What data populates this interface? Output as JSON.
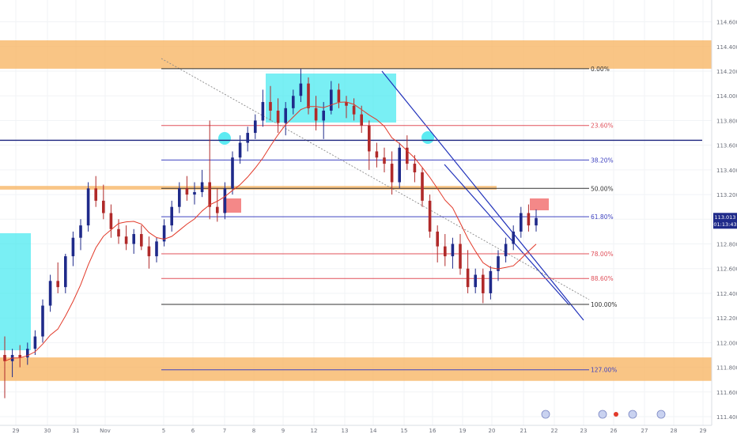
{
  "chart_data": {
    "type": "candlestick",
    "title": "",
    "xlabel": "",
    "ylabel": "",
    "grid": true,
    "ylim": [
      111.4,
      114.7
    ],
    "y_ticks": [
      "114.600",
      "114.400",
      "114.200",
      "114.000",
      "113.800",
      "113.600",
      "113.400",
      "113.200",
      "113.000",
      "112.800",
      "112.600",
      "112.400",
      "112.200",
      "112.000",
      "111.800",
      "111.600",
      "111.400"
    ],
    "x_ticks": [
      "29",
      "30",
      "31",
      "Nov",
      "5",
      "6",
      "7",
      "8",
      "9",
      "12",
      "13",
      "14",
      "15",
      "16",
      "19",
      "20",
      "21",
      "22",
      "23",
      "26",
      "27",
      "28",
      "29"
    ],
    "fibonacci_levels": [
      {
        "label": "0.00%",
        "price": 114.22,
        "color": "#333333"
      },
      {
        "label": "23.60%",
        "price": 113.76,
        "color": "#e0505a"
      },
      {
        "label": "38.20%",
        "price": 113.48,
        "color": "#3f43c0"
      },
      {
        "label": "50.00%",
        "price": 113.25,
        "color": "#333333"
      },
      {
        "label": "61.80%",
        "price": 113.02,
        "color": "#3f43c0"
      },
      {
        "label": "78.00%",
        "price": 112.72,
        "color": "#e0505a"
      },
      {
        "label": "88.60%",
        "price": 112.52,
        "color": "#e0505a"
      },
      {
        "label": "100.00%",
        "price": 112.31,
        "color": "#333333"
      },
      {
        "label": "127.00%",
        "price": 111.78,
        "color": "#3f43c0"
      }
    ],
    "zones": [
      {
        "kind": "resistance",
        "from": 114.22,
        "to": 114.45
      },
      {
        "kind": "support",
        "from": 111.69,
        "to": 111.88
      },
      {
        "kind": "level",
        "from": 113.24,
        "to": 113.27
      }
    ],
    "horizontal_lines": [
      {
        "price": 113.64,
        "color": "#1a237e"
      }
    ],
    "price_label": {
      "value": "113.013",
      "timer": "01:13:43"
    },
    "series": [
      {
        "x_start": 0,
        "candles": [
          [
            111.9,
            112.05,
            111.55,
            111.85
          ],
          [
            111.85,
            111.95,
            111.72,
            111.9
          ],
          [
            111.9,
            111.98,
            111.8,
            111.88
          ],
          [
            111.88,
            112.0,
            111.82,
            111.95
          ],
          [
            111.95,
            112.1,
            111.9,
            112.05
          ],
          [
            112.05,
            112.35,
            112.0,
            112.3
          ],
          [
            112.3,
            112.55,
            112.25,
            112.5
          ],
          [
            112.5,
            112.65,
            112.4,
            112.45
          ],
          [
            112.45,
            112.72,
            112.4,
            112.7
          ],
          [
            112.7,
            112.9,
            112.62,
            112.85
          ],
          [
            112.85,
            113.0,
            112.75,
            112.95
          ],
          [
            112.95,
            113.3,
            112.9,
            113.25
          ],
          [
            113.25,
            113.35,
            113.1,
            113.15
          ],
          [
            113.15,
            113.28,
            113.0,
            113.05
          ],
          [
            113.05,
            113.12,
            112.85,
            112.92
          ],
          [
            112.92,
            113.0,
            112.8,
            112.86
          ],
          [
            112.86,
            112.95,
            112.75,
            112.8
          ],
          [
            112.8,
            112.92,
            112.72,
            112.88
          ],
          [
            112.88,
            112.95,
            112.75,
            112.78
          ],
          [
            112.78,
            112.86,
            112.6,
            112.7
          ],
          [
            112.7,
            112.85,
            112.65,
            112.82
          ],
          [
            112.82,
            113.0,
            112.78,
            112.95
          ],
          [
            112.95,
            113.15,
            112.9,
            113.1
          ],
          [
            113.1,
            113.3,
            113.05,
            113.25
          ],
          [
            113.25,
            113.35,
            113.15,
            113.2
          ],
          [
            113.2,
            113.3,
            113.12,
            113.22
          ],
          [
            113.22,
            113.4,
            113.18,
            113.3
          ],
          [
            113.3,
            113.8,
            113.0,
            113.1
          ],
          [
            113.1,
            113.25,
            112.98,
            113.05
          ],
          [
            113.05,
            113.3,
            113.0,
            113.25
          ],
          [
            113.25,
            113.55,
            113.2,
            113.5
          ],
          [
            113.5,
            113.68,
            113.45,
            113.62
          ],
          [
            113.62,
            113.75,
            113.55,
            113.7
          ],
          [
            113.7,
            113.85,
            113.65,
            113.8
          ],
          [
            113.8,
            114.05,
            113.75,
            113.95
          ],
          [
            113.95,
            114.08,
            113.8,
            113.88
          ],
          [
            113.88,
            113.98,
            113.7,
            113.78
          ],
          [
            113.78,
            113.95,
            113.68,
            113.9
          ],
          [
            113.9,
            114.05,
            113.85,
            114.0
          ],
          [
            114.0,
            114.22,
            113.95,
            114.1
          ],
          [
            114.1,
            114.15,
            113.85,
            113.9
          ],
          [
            113.9,
            114.0,
            113.72,
            113.8
          ],
          [
            113.8,
            113.95,
            113.65,
            113.88
          ],
          [
            113.88,
            114.12,
            113.85,
            114.05
          ],
          [
            114.05,
            114.1,
            113.9,
            113.95
          ],
          [
            113.95,
            114.0,
            113.82,
            113.92
          ],
          [
            113.92,
            113.98,
            113.8,
            113.85
          ],
          [
            113.85,
            113.92,
            113.7,
            113.76
          ],
          [
            113.76,
            113.8,
            113.4,
            113.55
          ],
          [
            113.55,
            113.62,
            113.42,
            113.5
          ],
          [
            113.5,
            113.58,
            113.38,
            113.45
          ],
          [
            113.45,
            113.55,
            113.2,
            113.3
          ],
          [
            113.3,
            113.62,
            113.25,
            113.58
          ],
          [
            113.58,
            113.68,
            113.4,
            113.45
          ],
          [
            113.45,
            113.52,
            113.3,
            113.38
          ],
          [
            113.38,
            113.42,
            113.1,
            113.15
          ],
          [
            113.15,
            113.2,
            112.85,
            112.9
          ],
          [
            112.9,
            112.95,
            112.65,
            112.78
          ],
          [
            112.78,
            112.88,
            112.62,
            112.7
          ],
          [
            112.7,
            112.85,
            112.6,
            112.8
          ],
          [
            112.8,
            112.88,
            112.55,
            112.6
          ],
          [
            112.6,
            112.75,
            112.4,
            112.45
          ],
          [
            112.45,
            112.6,
            112.4,
            112.55
          ],
          [
            112.55,
            112.6,
            112.32,
            112.4
          ],
          [
            112.4,
            112.62,
            112.35,
            112.58
          ],
          [
            112.58,
            112.75,
            112.5,
            112.7
          ],
          [
            112.7,
            112.85,
            112.65,
            112.8
          ],
          [
            112.8,
            112.95,
            112.75,
            112.9
          ],
          [
            112.9,
            113.1,
            112.85,
            113.05
          ],
          [
            113.05,
            113.12,
            112.9,
            112.95
          ],
          [
            112.95,
            113.08,
            112.9,
            113.01
          ]
        ]
      }
    ]
  }
}
